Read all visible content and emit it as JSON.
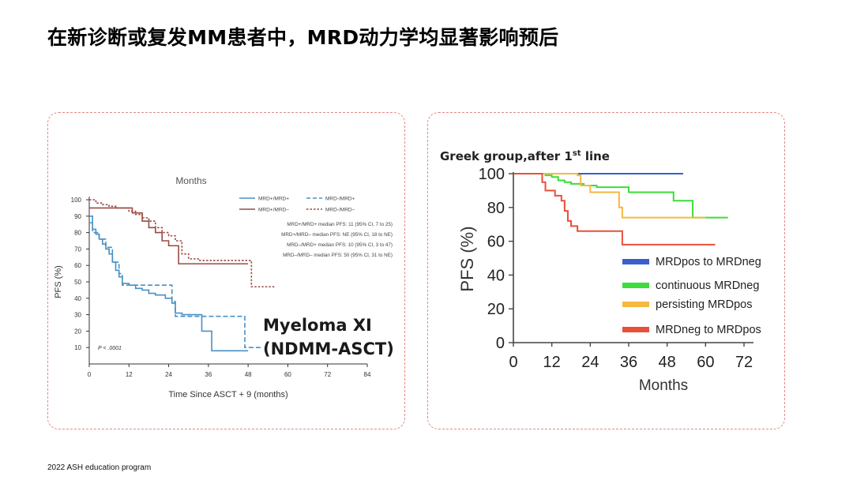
{
  "slide": {
    "title": "在新诊断或复发MM患者中，MRD动力学均显著影响预后",
    "footer": "2022 ASH education program"
  },
  "colors": {
    "left_blue": "#4a90c4",
    "left_brown": "#9b4a43",
    "right_blue": "#3a5fcd",
    "right_green": "#3ddc3a",
    "right_orange": "#f5b840",
    "right_red": "#e8503a",
    "panel_border": "#e38a86"
  },
  "chart_data": [
    {
      "type": "line",
      "subtype": "kaplan-meier",
      "title": "Months",
      "xlabel": "Time Since ASCT + 9 (months)",
      "ylabel": "PFS (%)",
      "xlim": [
        0,
        84
      ],
      "ylim": [
        0,
        100
      ],
      "xticks": [
        "0",
        "12",
        "24",
        "36",
        "48",
        "60",
        "72",
        "84"
      ],
      "yticks": [
        "10",
        "20",
        "30",
        "40",
        "50",
        "60",
        "70",
        "80",
        "90",
        "100"
      ],
      "pvalue": "P < .0001",
      "overlay_label": [
        "Myeloma XI",
        "(NDMM-ASCT)"
      ],
      "legend": [
        "MRD+/MRD+",
        "MRD-/MRD+",
        "MRD+/MRD–",
        "MRD-/MRD–"
      ],
      "medians": [
        "MRD+/MRD+ median PFS: 11 (95% CI, 7 to 25)",
        "MRD+/MRD– median PFS: NE (95% CI, 18 to NE)",
        "MRD–/MRD+ median PFS: 10 (95% CI, 3 to 47)",
        "MRD–/MRD– median PFS: 50 (95% CI, 31 to NE)"
      ],
      "series": [
        {
          "name": "MRD+/MRD+",
          "style": "solid",
          "color": "#4a90c4",
          "x": [
            0,
            1,
            2,
            3,
            4,
            5,
            6,
            7,
            8,
            9,
            10,
            12,
            14,
            16,
            18,
            20,
            23,
            25,
            26,
            28,
            31,
            34,
            37,
            40,
            44,
            48
          ],
          "y": [
            90,
            82,
            79,
            76,
            73,
            70,
            67,
            62,
            57,
            53,
            49,
            48,
            46,
            45,
            43,
            42,
            40,
            37,
            31,
            30,
            30,
            20,
            8,
            8,
            8,
            8
          ]
        },
        {
          "name": "MRD-/MRD+",
          "style": "dashed",
          "color": "#4a90c4",
          "x": [
            0,
            1,
            3,
            5,
            7,
            9,
            10,
            24,
            25,
            26,
            46,
            47,
            48,
            52
          ],
          "y": [
            86,
            80,
            76,
            71,
            62,
            55,
            48,
            48,
            38,
            29,
            29,
            10,
            10,
            10
          ]
        },
        {
          "name": "MRD+/MRD–",
          "style": "solid",
          "color": "#9b4a43",
          "x": [
            0,
            12,
            13,
            16,
            18,
            20,
            22,
            24,
            26,
            27,
            30,
            48
          ],
          "y": [
            95,
            95,
            92,
            87,
            83,
            80,
            75,
            72,
            72,
            61,
            61,
            61
          ]
        },
        {
          "name": "MRD-/MRD–",
          "style": "dashed",
          "color": "#9b4a43",
          "x": [
            0,
            2,
            4,
            6,
            8,
            10,
            12,
            14,
            16,
            18,
            20,
            22,
            24,
            26,
            28,
            30,
            33,
            36,
            40,
            44,
            48,
            49,
            52,
            56
          ],
          "y": [
            100,
            98,
            97,
            96,
            95,
            95,
            93,
            91,
            89,
            87,
            83,
            80,
            78,
            75,
            67,
            64,
            63,
            63,
            63,
            63,
            63,
            47,
            47,
            47
          ]
        }
      ]
    },
    {
      "type": "line",
      "subtype": "kaplan-meier",
      "title": "Greek group,after 1",
      "title_sup": "st",
      "title_suffix": " line",
      "xlabel": "Months",
      "ylabel": "PFS (%)",
      "xlim": [
        0,
        72
      ],
      "ylim": [
        0,
        100
      ],
      "xticks": [
        "0",
        "12",
        "24",
        "36",
        "48",
        "60",
        "72"
      ],
      "yticks": [
        "0",
        "20",
        "40",
        "60",
        "80",
        "100"
      ],
      "legend": [
        "MRDpos to MRDneg",
        "continuous MRDneg",
        "persisting MRDpos",
        "MRDneg to MRDpos"
      ],
      "series": [
        {
          "name": "MRDpos to MRDneg",
          "color": "#3a5fcd",
          "x": [
            0,
            18,
            19,
            53
          ],
          "y": [
            100,
            100,
            100,
            100
          ]
        },
        {
          "name": "continuous MRDneg",
          "color": "#3ddc3a",
          "x": [
            0,
            10,
            12,
            14,
            16,
            18,
            20,
            22,
            26,
            32,
            36,
            40,
            48,
            50,
            54,
            56,
            58,
            60,
            67
          ],
          "y": [
            100,
            99,
            98,
            96,
            95,
            94,
            94,
            93,
            92,
            92,
            89,
            89,
            89,
            84,
            84,
            74,
            74,
            74,
            74
          ]
        },
        {
          "name": "persisting MRDpos",
          "color": "#f5b840",
          "x": [
            0,
            12,
            16,
            20,
            21,
            22,
            24,
            26,
            30,
            33,
            34,
            36,
            40,
            50,
            60
          ],
          "y": [
            100,
            100,
            100,
            99,
            93,
            93,
            89,
            89,
            89,
            80,
            74,
            74,
            74,
            74,
            74
          ]
        },
        {
          "name": "MRDneg to MRDpos",
          "color": "#e8503a",
          "x": [
            0,
            8,
            9,
            10,
            13,
            15,
            16,
            17,
            18,
            20,
            22,
            28,
            33,
            34,
            38,
            44,
            55,
            63
          ],
          "y": [
            100,
            100,
            95,
            90,
            87,
            84,
            78,
            72,
            69,
            66,
            66,
            66,
            66,
            58,
            58,
            58,
            58,
            58
          ]
        }
      ]
    }
  ]
}
